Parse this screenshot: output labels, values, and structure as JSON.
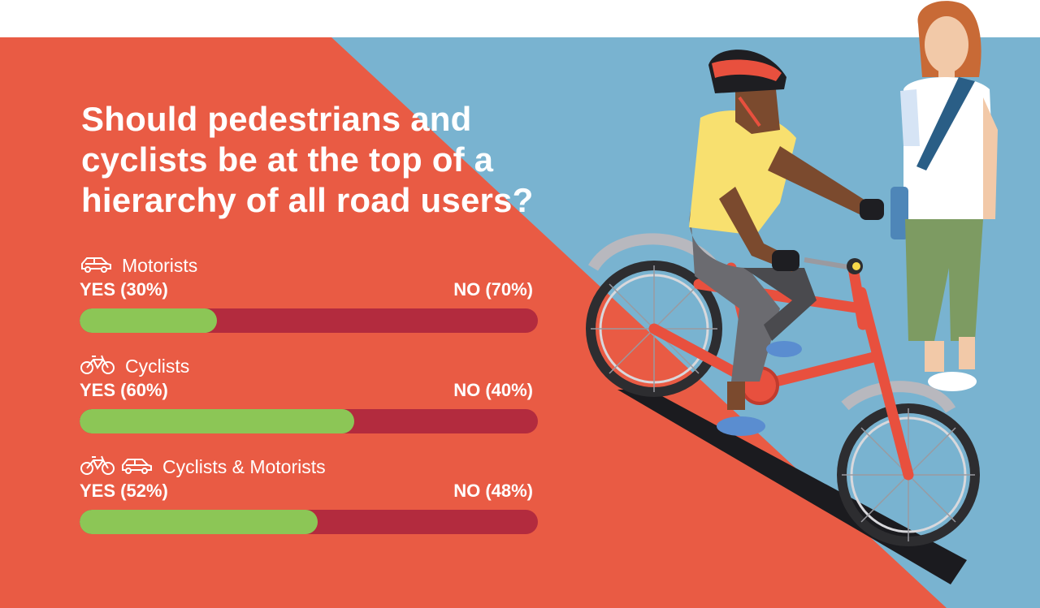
{
  "colors": {
    "red_background": "#e95b44",
    "blue_background": "#79b3d0",
    "yes_bar": "#8cc656",
    "no_bar": "#b32b3e",
    "text": "#ffffff"
  },
  "title": "Should pedestrians and cyclists be at the top of a hierarchy of all road users?",
  "chart_data": {
    "type": "bar",
    "orientation": "horizontal-stacked",
    "title": "Should pedestrians and cyclists be at the top of a hierarchy of all road users?",
    "series_names": [
      "YES",
      "NO"
    ],
    "categories": [
      "Motorists",
      "Cyclists",
      "Cyclists & Motorists"
    ],
    "groups": [
      {
        "label": "Motorists",
        "icons": [
          "car-icon"
        ],
        "yes": 30,
        "no": 70,
        "yes_text": "YES (30%)",
        "no_text": "NO (70%)"
      },
      {
        "label": "Cyclists",
        "icons": [
          "bicycle-icon"
        ],
        "yes": 60,
        "no": 40,
        "yes_text": "YES (60%)",
        "no_text": "NO (40%)"
      },
      {
        "label": "Cyclists & Motorists",
        "icons": [
          "bicycle-icon",
          "car-icon"
        ],
        "yes": 52,
        "no": 48,
        "yes_text": "YES (52%)",
        "no_text": "NO (48%)"
      }
    ],
    "unit": "%",
    "scale": [
      0,
      100
    ]
  },
  "illustration": {
    "subject": "cyclist-and-pedestrian-illustration"
  }
}
